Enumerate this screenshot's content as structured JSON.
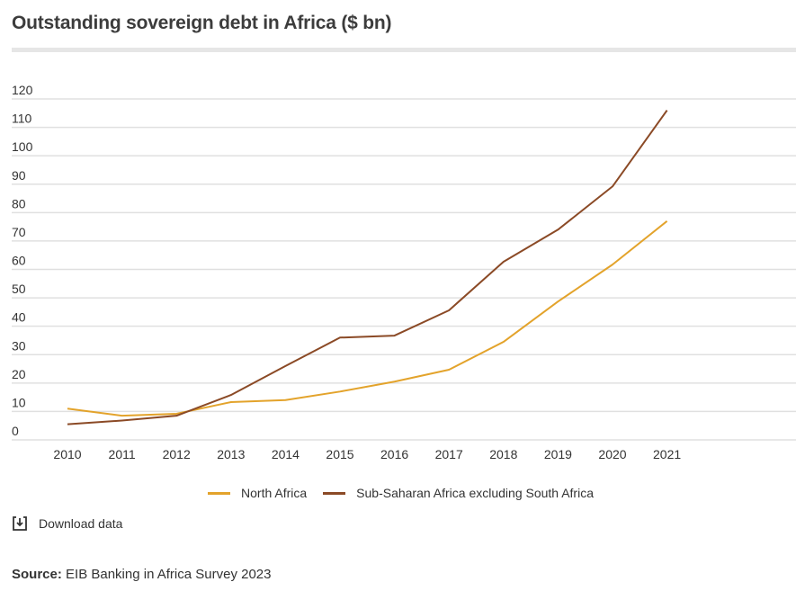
{
  "header": {
    "title": "Outstanding sovereign debt in Africa ($ bn)"
  },
  "chart_data": {
    "type": "line",
    "title": "Outstanding sovereign debt in Africa ($ bn)",
    "xlabel": "",
    "ylabel": "",
    "x": [
      "2010",
      "2011",
      "2012",
      "2013",
      "2014",
      "2015",
      "2016",
      "2017",
      "2018",
      "2019",
      "2020",
      "2021"
    ],
    "ylim": [
      0,
      120
    ],
    "yticks": [
      0,
      10,
      20,
      30,
      40,
      50,
      60,
      70,
      80,
      90,
      100,
      110,
      120
    ],
    "grid": true,
    "legend_position": "bottom",
    "series": [
      {
        "name": "North Africa",
        "color": "#e3a32b",
        "values": [
          11,
          8.5,
          9.2,
          13.3,
          14,
          17,
          20.5,
          24.7,
          34.5,
          48.7,
          61.7,
          77
        ]
      },
      {
        "name": "Sub-Saharan Africa excluding South Africa",
        "color": "#8b4a26",
        "values": [
          5.5,
          6.8,
          8.5,
          15.8,
          26,
          36,
          36.7,
          45.6,
          62.7,
          74,
          89.2,
          116
        ]
      }
    ]
  },
  "actions": {
    "download_label": "Download data",
    "download_icon": "download-icon"
  },
  "footer": {
    "source_label": "Source:",
    "source_text": " EIB Banking in Africa Survey 2023"
  }
}
